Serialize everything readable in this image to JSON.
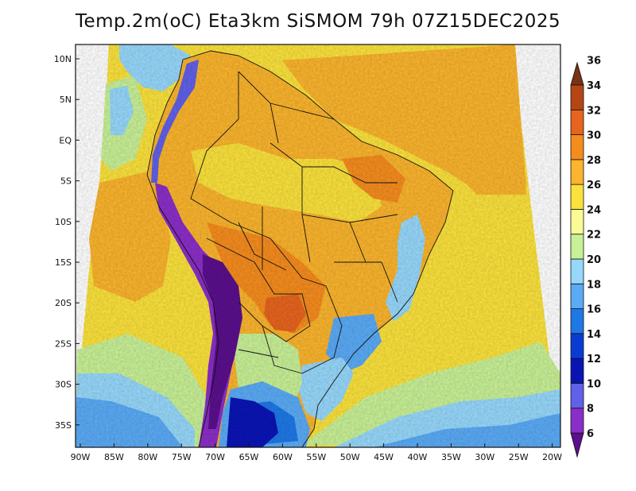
{
  "title": "Temp.2m(oC) Eta3km SiSMOM 79h 07Z15DEC2025",
  "latitude_ticks": [
    "10N",
    "5N",
    "EQ",
    "5S",
    "10S",
    "15S",
    "20S",
    "25S",
    "30S",
    "35S"
  ],
  "longitude_ticks": [
    "90W",
    "85W",
    "80W",
    "75W",
    "70W",
    "65W",
    "60W",
    "55W",
    "50W",
    "45W",
    "40W",
    "35W",
    "30W",
    "25W",
    "20W"
  ],
  "colorbar": {
    "levels": [
      "6",
      "8",
      "10",
      "12",
      "14",
      "16",
      "18",
      "20",
      "22",
      "24",
      "26",
      "28",
      "30",
      "32",
      "34",
      "36"
    ],
    "colors": [
      "#5a0f8c",
      "#8a2ec8",
      "#6060e8",
      "#0a14b4",
      "#0a3cd2",
      "#1e78e6",
      "#5aaaf5",
      "#96d7fa",
      "#c8f096",
      "#fafa96",
      "#fae13c",
      "#fab42d",
      "#f58c1e",
      "#e6641e",
      "#b44614",
      "#783214"
    ]
  }
}
